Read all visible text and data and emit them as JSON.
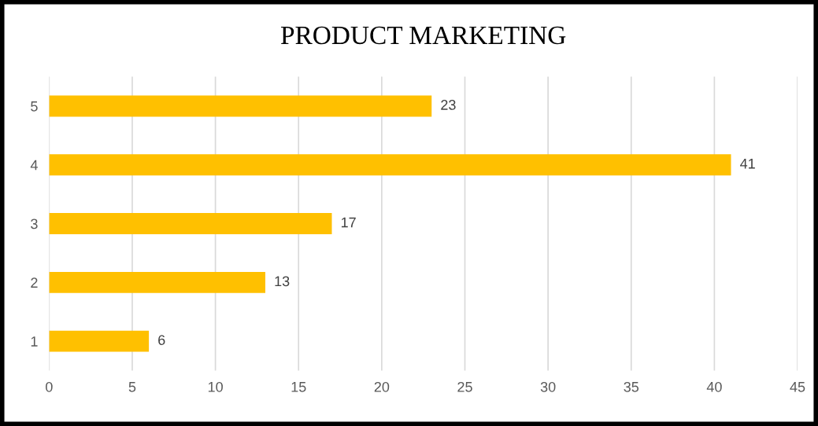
{
  "chart_data": {
    "type": "bar",
    "orientation": "horizontal",
    "title": "PRODUCT MARKETING",
    "categories": [
      "5",
      "4",
      "3",
      "2",
      "1"
    ],
    "values": [
      23,
      41,
      17,
      13,
      6
    ],
    "color": "#ffc000",
    "xlim": [
      0,
      45
    ],
    "xticks": [
      0,
      5,
      10,
      15,
      20,
      25,
      30,
      35,
      40,
      45
    ],
    "grid": "x",
    "data_labels": true
  }
}
